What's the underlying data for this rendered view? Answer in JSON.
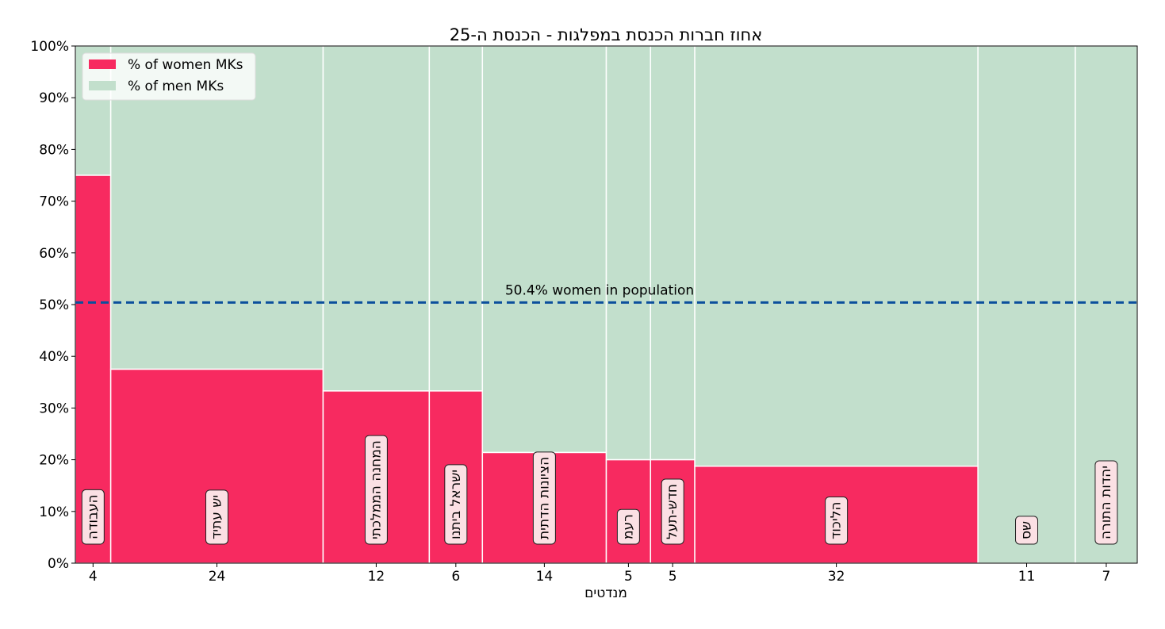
{
  "chart_data": {
    "type": "bar",
    "title": "אחוז חברות הכנסת במפלגות - הכנסת ה-25",
    "xlabel": "מנדטים",
    "ylabel": "",
    "ylim": [
      0,
      100
    ],
    "yticks": [
      "0%",
      "10%",
      "20%",
      "30%",
      "40%",
      "50%",
      "60%",
      "70%",
      "80%",
      "90%",
      "100%"
    ],
    "legend_position": "top-left",
    "categories": [
      "העבודה",
      "יש עתיד",
      "המחנה הממלכתי",
      "ישראל ביתנו",
      "הציונות הדתית",
      "רעמ",
      "חדש-תעל",
      "הליכוד",
      "שס",
      "יהדות התורה"
    ],
    "seats": [
      4,
      24,
      12,
      6,
      14,
      5,
      5,
      32,
      11,
      7
    ],
    "series": [
      {
        "name": "% of women MKs",
        "values": [
          75,
          37.5,
          33.3,
          33.3,
          21.4,
          20,
          20,
          18.75,
          0,
          0
        ],
        "color": "#f72a60"
      },
      {
        "name": "% of men MKs",
        "values": [
          25,
          62.5,
          66.7,
          66.7,
          78.6,
          80,
          80,
          81.25,
          100,
          100
        ],
        "color": "#c2dfcc"
      }
    ],
    "reference_line": {
      "value": 50.4,
      "label": "50.4% women in population",
      "color": "#0b4f9c"
    },
    "grid": false
  }
}
